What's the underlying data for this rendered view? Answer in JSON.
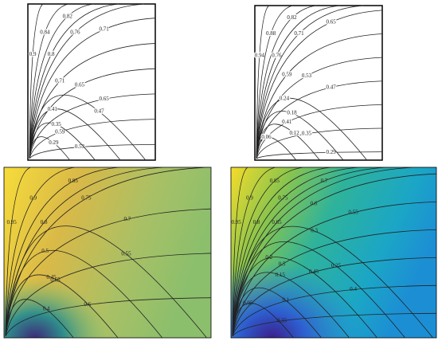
{
  "panels": [
    {
      "contour_labels": [
        "0.9",
        "0.84",
        "0.82",
        "0.8",
        "0.76",
        "0.71",
        "0.71",
        "0.65",
        "0.65",
        "0.59",
        "0.53",
        "0.47",
        "0.41",
        "0.35",
        "0.29"
      ]
    },
    {
      "contour_labels": [
        "0.94",
        "0.88",
        "0.82",
        "0.76",
        "0.71",
        "0.65",
        "0.59",
        "0.53",
        "0.47",
        "0.41",
        "0.35",
        "0.29",
        "0.24",
        "0.18",
        "0.12",
        "0.06"
      ]
    },
    {
      "contour_labels": [
        "0.95",
        "0.9",
        "0.85",
        "0.8",
        "0.75",
        "0.7",
        "0.65",
        "0.6",
        "0.55",
        "0.5",
        "0.45",
        "0.4"
      ]
    },
    {
      "contour_labels": [
        "0.95",
        "0.9",
        "0.85",
        "0.8",
        "0.75",
        "0.7",
        "0.65",
        "0.6",
        "0.55",
        "0.5",
        "0.45",
        "0.4",
        "0.35",
        "0.3",
        "0.25",
        "0.2",
        "0.15",
        "0.1",
        "0.05"
      ]
    }
  ]
}
